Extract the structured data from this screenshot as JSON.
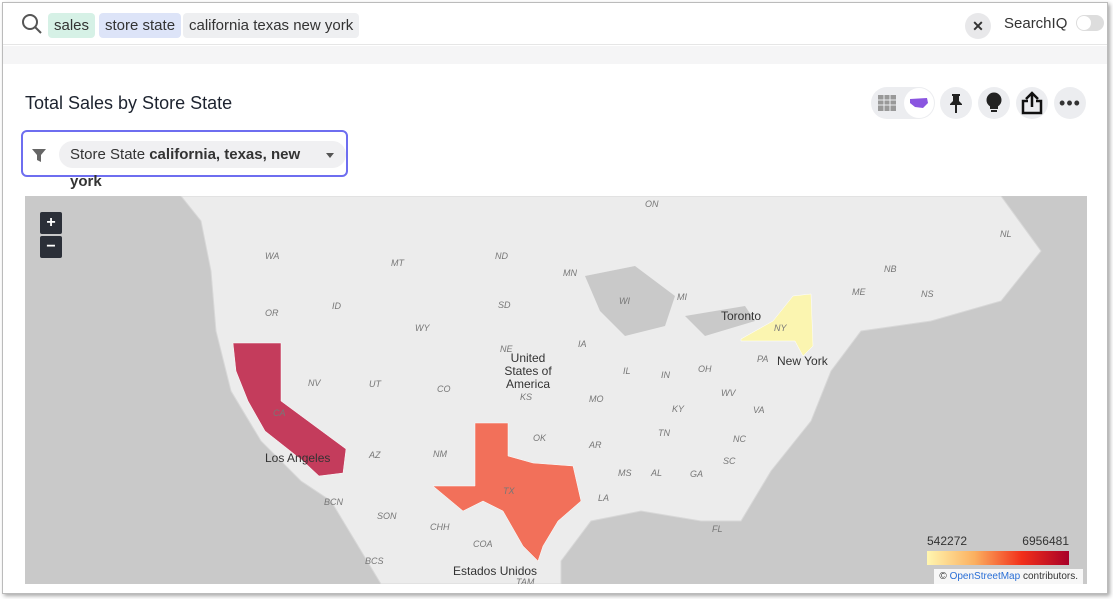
{
  "search": {
    "tokens": [
      "sales",
      "store state",
      "california texas new york"
    ],
    "searchiq_label": "SearchIQ",
    "searchiq_enabled": false
  },
  "chart": {
    "title": "Total Sales by Store State",
    "toolbar": {
      "icons": [
        "table-icon",
        "map-icon",
        "pin-icon",
        "lightbulb-icon",
        "share-icon",
        "more-icon"
      ],
      "active_view": "map"
    },
    "filter": {
      "label": "Store State",
      "value": "california, texas, new york"
    }
  },
  "map": {
    "state_labels": [
      "WA",
      "MT",
      "ND",
      "MN",
      "OR",
      "ID",
      "SD",
      "WI",
      "MI",
      "WY",
      "NE",
      "IA",
      "NV",
      "UT",
      "CO",
      "KS",
      "MO",
      "IL",
      "IN",
      "OH",
      "CA",
      "AZ",
      "NM",
      "OK",
      "AR",
      "TN",
      "KY",
      "WV",
      "VA",
      "NC",
      "SC",
      "GA",
      "AL",
      "MS",
      "LA",
      "TX",
      "FL",
      "NY",
      "PA",
      "ME",
      "NB",
      "NS",
      "NL",
      "ON",
      "BCN",
      "SON",
      "CHH",
      "COA",
      "TAM",
      "BCS"
    ],
    "place_labels": [
      "Toronto",
      "New York",
      "Los Angeles",
      "United States of America",
      "Estados Unidos"
    ],
    "zoom_in": "+",
    "zoom_out": "−",
    "regions": [
      {
        "name": "California",
        "color": "#c43c5c"
      },
      {
        "name": "Texas",
        "color": "#f2705a"
      },
      {
        "name": "New York",
        "color": "#fbf5b0"
      }
    ],
    "legend": {
      "min": "542272",
      "max": "6956481",
      "colors": [
        "#fff6b0",
        "#fbb060",
        "#f2301a",
        "#a80028"
      ]
    },
    "attribution": {
      "prefix": "©",
      "link": "OpenStreetMap",
      "suffix": "contributors."
    }
  }
}
